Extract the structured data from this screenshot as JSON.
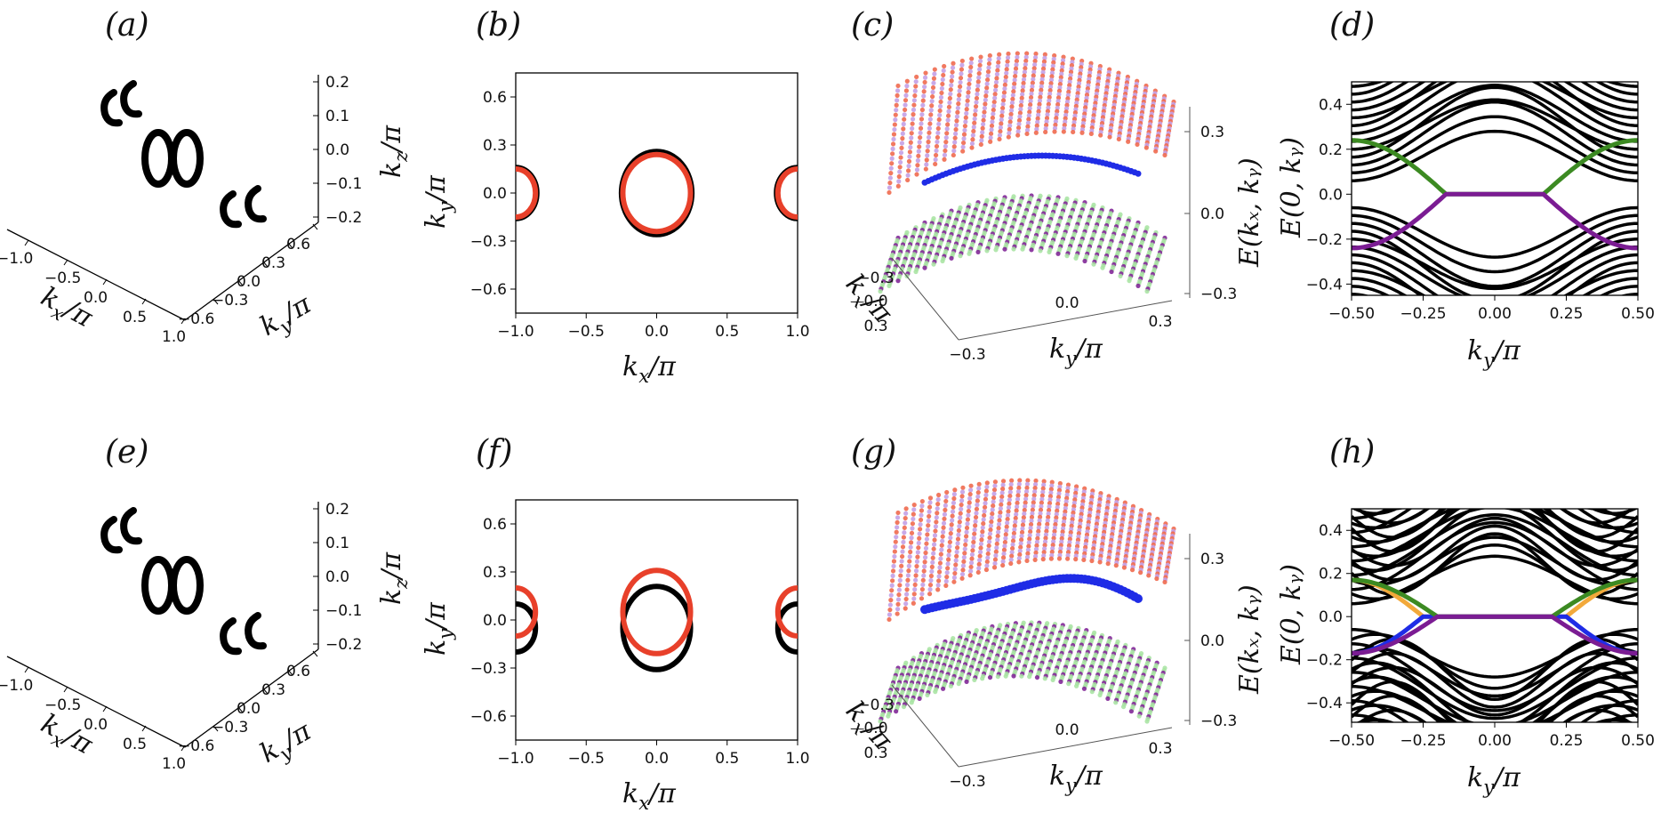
{
  "colors": {
    "black": "#000000",
    "red": "#e8402a",
    "blue": "#1f2ce6",
    "green": "#3c8a22",
    "purple": "#7b1c93",
    "orange": "#f2a93b",
    "salmon": "#ef6a4f",
    "lavender": "#c3a0e6",
    "lightgreen": "#a6e3a0"
  },
  "chart_data": [
    {
      "panel": "(a)",
      "type": "scatter",
      "xlabel": "k_x/π",
      "ylabel": "k_y/π",
      "zlabel": "k_z/π",
      "x_ticks": [
        "−1.0",
        "−0.5",
        "0.0",
        "0.5",
        "1.0"
      ],
      "y_ticks": [
        "−0.6",
        "−0.3",
        "0.0",
        "0.3",
        "0.6"
      ],
      "z_ticks": [
        "0.2",
        "0.1",
        "0.0",
        "−0.1",
        "−0.2"
      ],
      "xlim": [
        -1.0,
        1.0
      ],
      "ylim": [
        -0.6,
        0.6
      ],
      "zlim": [
        -0.2,
        0.2
      ],
      "series": [
        {
          "values": "two loops at k_x≈0 and pairs of arcs at k_x≈±1"
        }
      ]
    },
    {
      "panel": "(b)",
      "type": "line",
      "xlabel": "k_x/π",
      "ylabel": "k_y/π",
      "xlim": [
        -1.0,
        1.0
      ],
      "ylim": [
        -0.75,
        0.75
      ],
      "x_ticks": [
        "−1.0",
        "−0.5",
        "0.0",
        "0.5",
        "1.0"
      ],
      "y_ticks": [
        "0.6",
        "0.3",
        "0.0",
        "−0.3",
        "−0.6"
      ],
      "series": [
        {
          "color": "black",
          "center_x": 0.0,
          "rx": 0.25,
          "ry": 0.26
        },
        {
          "color": "red",
          "center_x": 0.0,
          "rx": 0.24,
          "ry": 0.24
        },
        {
          "color": "black",
          "center_x": -1.0,
          "rx": 0.15,
          "ry": 0.16
        },
        {
          "color": "red",
          "center_x": -1.0,
          "rx": 0.14,
          "ry": 0.15
        },
        {
          "color": "black",
          "center_x": 1.0,
          "rx": 0.15,
          "ry": 0.16
        },
        {
          "color": "red",
          "center_x": 1.0,
          "rx": 0.14,
          "ry": 0.15
        }
      ]
    },
    {
      "panel": "(c)",
      "type": "scatter",
      "xlabel": "k_x/π",
      "ylabel": "k_y/π",
      "zlabel": "E(k_x, k_y)",
      "x_ticks": [
        "−0.3",
        "0.0",
        "0.3"
      ],
      "y_ticks": [
        "−0.3",
        "0.0",
        "0.3"
      ],
      "z_ticks": [
        "0.3",
        "0.0",
        "−0.3"
      ],
      "series": [
        {
          "values": "upper and lower band surfaces (red/purple, green/purple, blue edge)"
        }
      ]
    },
    {
      "panel": "(d)",
      "type": "line",
      "xlabel": "k_y/π",
      "ylabel": "E(0, k_y)",
      "xlim": [
        -0.5,
        0.5
      ],
      "ylim": [
        -0.45,
        0.5
      ],
      "x_ticks": [
        "−0.50",
        "−0.25",
        "0.00",
        "0.25",
        "0.50"
      ],
      "y_ticks": [
        "0.4",
        "0.2",
        "0.0",
        "−0.2",
        "−0.4"
      ],
      "series": [
        {
          "color": "black",
          "values": "bulk bands"
        },
        {
          "color": "green",
          "values": "edge state: 0.24 at ±0.5, 0.0 for |k_y|<0.17"
        },
        {
          "color": "purple",
          "values": "edge state: −0.24 at ±0.5, 0.0 for |k_y|<0.17"
        }
      ]
    },
    {
      "panel": "(e)",
      "type": "scatter",
      "xlabel": "k_x/π",
      "ylabel": "k_y/π",
      "zlabel": "k_z/π",
      "x_ticks": [
        "−1.0",
        "−0.5",
        "0.0",
        "0.5",
        "1.0"
      ],
      "y_ticks": [
        "−0.6",
        "−0.3",
        "0.0",
        "0.3",
        "0.6"
      ],
      "z_ticks": [
        "0.2",
        "0.1",
        "0.0",
        "−0.1",
        "−0.2"
      ],
      "xlim": [
        -1.0,
        1.0
      ],
      "ylim": [
        -0.6,
        0.6
      ],
      "zlim": [
        -0.2,
        0.2
      ],
      "series": [
        {
          "values": "two loops at k_x≈0 and pairs of arcs at k_x≈±1"
        }
      ]
    },
    {
      "panel": "(f)",
      "type": "line",
      "xlabel": "k_x/π",
      "ylabel": "k_y/π",
      "xlim": [
        -1.0,
        1.0
      ],
      "ylim": [
        -0.75,
        0.75
      ],
      "x_ticks": [
        "−1.0",
        "−0.5",
        "0.0",
        "0.5",
        "1.0"
      ],
      "y_ticks": [
        "0.6",
        "0.3",
        "0.0",
        "−0.3",
        "−0.6"
      ],
      "series": [
        {
          "color": "black",
          "center_x": 0.0,
          "center_y": -0.05,
          "rx": 0.24,
          "ry": 0.26
        },
        {
          "color": "red",
          "center_x": 0.0,
          "center_y": 0.05,
          "rx": 0.24,
          "ry": 0.26
        },
        {
          "color": "black",
          "center_x": -1.0,
          "center_y": -0.05,
          "rx": 0.14,
          "ry": 0.15
        },
        {
          "color": "red",
          "center_x": -1.0,
          "center_y": 0.05,
          "rx": 0.14,
          "ry": 0.15
        },
        {
          "color": "black",
          "center_x": 1.0,
          "center_y": -0.05,
          "rx": 0.14,
          "ry": 0.15
        },
        {
          "color": "red",
          "center_x": 1.0,
          "center_y": 0.05,
          "rx": 0.14,
          "ry": 0.15
        }
      ]
    },
    {
      "panel": "(g)",
      "type": "scatter",
      "xlabel": "k_x/π",
      "ylabel": "k_y/π",
      "zlabel": "E(k_x, k_y)",
      "x_ticks": [
        "−0.3",
        "0.0",
        "0.3"
      ],
      "y_ticks": [
        "−0.3",
        "0.0",
        "0.3"
      ],
      "z_ticks": [
        "0.3",
        "0.0",
        "−0.3"
      ],
      "series": [
        {
          "values": "upper and lower band surfaces (red/purple, green/purple, blue region)"
        }
      ]
    },
    {
      "panel": "(h)",
      "type": "line",
      "xlabel": "k_y/π",
      "ylabel": "E(0, k_y)",
      "xlim": [
        -0.5,
        0.5
      ],
      "ylim": [
        -0.5,
        0.5
      ],
      "x_ticks": [
        "−0.50",
        "−0.25",
        "0.00",
        "0.25",
        "0.50"
      ],
      "y_ticks": [
        "0.4",
        "0.2",
        "0.0",
        "−0.2",
        "−0.4"
      ],
      "series": [
        {
          "color": "black",
          "values": "bulk bands"
        },
        {
          "color": "green",
          "values": "edge state: 0.17 at ±0.5, 0.0 for |k_y|<0.2"
        },
        {
          "color": "orange",
          "values": "edge state: 0.17 at ±0.5, 0.0 for |k_y|<0.25"
        },
        {
          "color": "purple",
          "values": "edge state: −0.17 at ±0.5, 0.0 for |k_y|<0.2"
        },
        {
          "color": "blue",
          "values": "edge state: −0.17 at ±0.5, 0.0 for |k_y|<0.25"
        }
      ]
    }
  ]
}
